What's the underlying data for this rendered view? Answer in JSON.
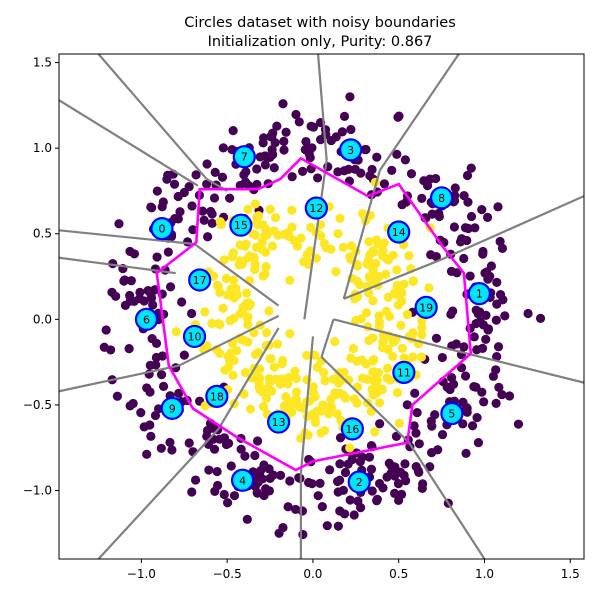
{
  "chart_data": {
    "type": "scatter",
    "title": "Circles dataset with noisy boundaries",
    "subtitle": "Initialization only, Purity: 0.867",
    "xlabel": "",
    "ylabel": "",
    "xlim": [
      -1.48,
      1.58
    ],
    "ylim": [
      -1.4,
      1.55
    ],
    "xticks": [
      {
        "value": -1.0,
        "label": "−1.0"
      },
      {
        "value": -0.5,
        "label": "−0.5"
      },
      {
        "value": 0.0,
        "label": "0.0"
      },
      {
        "value": 0.5,
        "label": "0.5"
      },
      {
        "value": 1.0,
        "label": "1.0"
      },
      {
        "value": 1.5,
        "label": "1.5"
      }
    ],
    "yticks": [
      {
        "value": -1.0,
        "label": "−1.0"
      },
      {
        "value": -0.5,
        "label": "−0.5"
      },
      {
        "value": 0.0,
        "label": "0.0"
      },
      {
        "value": 0.5,
        "label": "0.5"
      },
      {
        "value": 1.0,
        "label": "1.0"
      },
      {
        "value": 1.5,
        "label": "1.5"
      }
    ],
    "grid": false,
    "classes": [
      {
        "color": "#440154",
        "ring": {
          "r_mean": 1.0,
          "r_sd": 0.12,
          "count": 480
        }
      },
      {
        "color": "#fde725",
        "ring": {
          "r_mean": 0.5,
          "r_sd": 0.12,
          "count": 380
        }
      }
    ],
    "centers": [
      {
        "label": "0",
        "x": -0.88,
        "y": 0.53
      },
      {
        "label": "1",
        "x": 0.97,
        "y": 0.15
      },
      {
        "label": "2",
        "x": 0.27,
        "y": -0.95
      },
      {
        "label": "3",
        "x": 0.22,
        "y": 0.99
      },
      {
        "label": "4",
        "x": -0.41,
        "y": -0.94
      },
      {
        "label": "5",
        "x": 0.81,
        "y": -0.55
      },
      {
        "label": "6",
        "x": -0.97,
        "y": 0.0
      },
      {
        "label": "7",
        "x": -0.4,
        "y": 0.95
      },
      {
        "label": "8",
        "x": 0.75,
        "y": 0.71
      },
      {
        "label": "9",
        "x": -0.82,
        "y": -0.52
      },
      {
        "label": "10",
        "x": -0.69,
        "y": -0.1
      },
      {
        "label": "11",
        "x": 0.53,
        "y": -0.31
      },
      {
        "label": "12",
        "x": 0.02,
        "y": 0.65
      },
      {
        "label": "13",
        "x": -0.2,
        "y": -0.6
      },
      {
        "label": "14",
        "x": 0.5,
        "y": 0.51
      },
      {
        "label": "15",
        "x": -0.42,
        "y": 0.55
      },
      {
        "label": "16",
        "x": 0.23,
        "y": -0.64
      },
      {
        "label": "17",
        "x": -0.66,
        "y": 0.23
      },
      {
        "label": "18",
        "x": -0.56,
        "y": -0.45
      },
      {
        "label": "19",
        "x": 0.66,
        "y": 0.07
      }
    ],
    "center_style": {
      "fill": "#00e5ff",
      "stroke": "#0000ff"
    },
    "boundary_color": "#808080",
    "voronoi_boundaries": [
      [
        [
          -1.25,
          1.55
        ],
        [
          -0.62,
          0.82
        ]
      ],
      [
        [
          -1.48,
          1.28
        ],
        [
          -0.67,
          0.78
        ]
      ],
      [
        [
          -0.62,
          0.82
        ],
        [
          -0.5,
          0.75
        ]
      ],
      [
        [
          -1.48,
          0.52
        ],
        [
          -0.69,
          0.44
        ]
      ],
      [
        [
          -0.69,
          0.44
        ],
        [
          -0.2,
          0.08
        ]
      ],
      [
        [
          -1.48,
          0.36
        ],
        [
          -0.8,
          0.27
        ]
      ],
      [
        [
          -1.48,
          -0.42
        ],
        [
          -0.78,
          -0.27
        ]
      ],
      [
        [
          -0.78,
          -0.27
        ],
        [
          -0.2,
          0.02
        ]
      ],
      [
        [
          -1.25,
          -1.4
        ],
        [
          -0.55,
          -0.64
        ]
      ],
      [
        [
          -0.55,
          -0.64
        ],
        [
          -0.2,
          -0.05
        ]
      ],
      [
        [
          -0.07,
          -1.4
        ],
        [
          -0.07,
          -0.9
        ]
      ],
      [
        [
          -0.07,
          -0.9
        ],
        [
          0.0,
          -0.1
        ]
      ],
      [
        [
          0.03,
          1.55
        ],
        [
          0.08,
          0.93
        ]
      ],
      [
        [
          0.08,
          0.93
        ],
        [
          -0.05,
          0.0
        ]
      ],
      [
        [
          0.85,
          1.55
        ],
        [
          0.39,
          0.87
        ]
      ],
      [
        [
          0.39,
          0.87
        ],
        [
          0.18,
          0.12
        ]
      ],
      [
        [
          1.58,
          0.72
        ],
        [
          0.75,
          0.35
        ]
      ],
      [
        [
          0.75,
          0.35
        ],
        [
          0.18,
          0.12
        ]
      ],
      [
        [
          1.58,
          -0.37
        ],
        [
          0.82,
          -0.18
        ]
      ],
      [
        [
          0.82,
          -0.18
        ],
        [
          0.12,
          0.0
        ]
      ],
      [
        [
          1.0,
          -1.4
        ],
        [
          0.56,
          -0.72
        ]
      ],
      [
        [
          0.56,
          -0.72
        ],
        [
          0.05,
          -0.22
        ]
      ],
      [
        [
          0.12,
          0.0
        ],
        [
          0.05,
          -0.22
        ]
      ]
    ],
    "hull_color": "#ff00ff",
    "inner_hull": [
      [
        -0.07,
        0.94
      ],
      [
        0.32,
        0.72
      ],
      [
        0.5,
        0.79
      ],
      [
        0.76,
        0.42
      ],
      [
        0.88,
        0.27
      ],
      [
        0.92,
        -0.2
      ],
      [
        0.58,
        -0.5
      ],
      [
        0.55,
        -0.72
      ],
      [
        0.0,
        -0.83
      ],
      [
        -0.1,
        -0.88
      ],
      [
        -0.44,
        -0.69
      ],
      [
        -0.7,
        -0.52
      ],
      [
        -0.84,
        -0.27
      ],
      [
        -0.91,
        0.27
      ],
      [
        -0.68,
        0.45
      ],
      [
        -0.66,
        0.76
      ],
      [
        -0.32,
        0.76
      ],
      [
        -0.19,
        0.82
      ]
    ]
  }
}
